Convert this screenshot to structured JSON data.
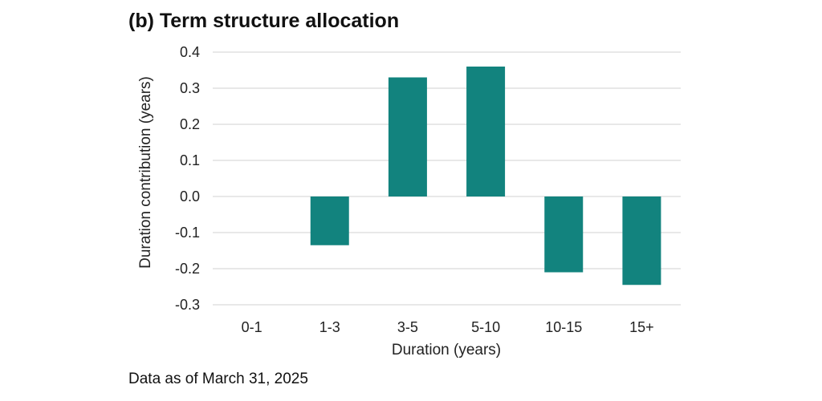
{
  "chart_data": {
    "type": "bar",
    "title": "(b) Term structure allocation",
    "xlabel": "Duration (years)",
    "ylabel": "Duration contribution (years)",
    "categories": [
      "0-1",
      "1-3",
      "3-5",
      "5-10",
      "10-15",
      "15+"
    ],
    "values": [
      0.0,
      -0.135,
      0.33,
      0.36,
      -0.21,
      -0.245
    ],
    "ylim": [
      -0.3,
      0.4
    ],
    "yticks": [
      "0.4",
      "0.3",
      "0.2",
      "0.1",
      "0.0",
      "-0.1",
      "-0.2",
      "-0.3"
    ],
    "bar_color": "#12837e",
    "grid": true
  },
  "footnote": "Data as of March 31, 2025"
}
